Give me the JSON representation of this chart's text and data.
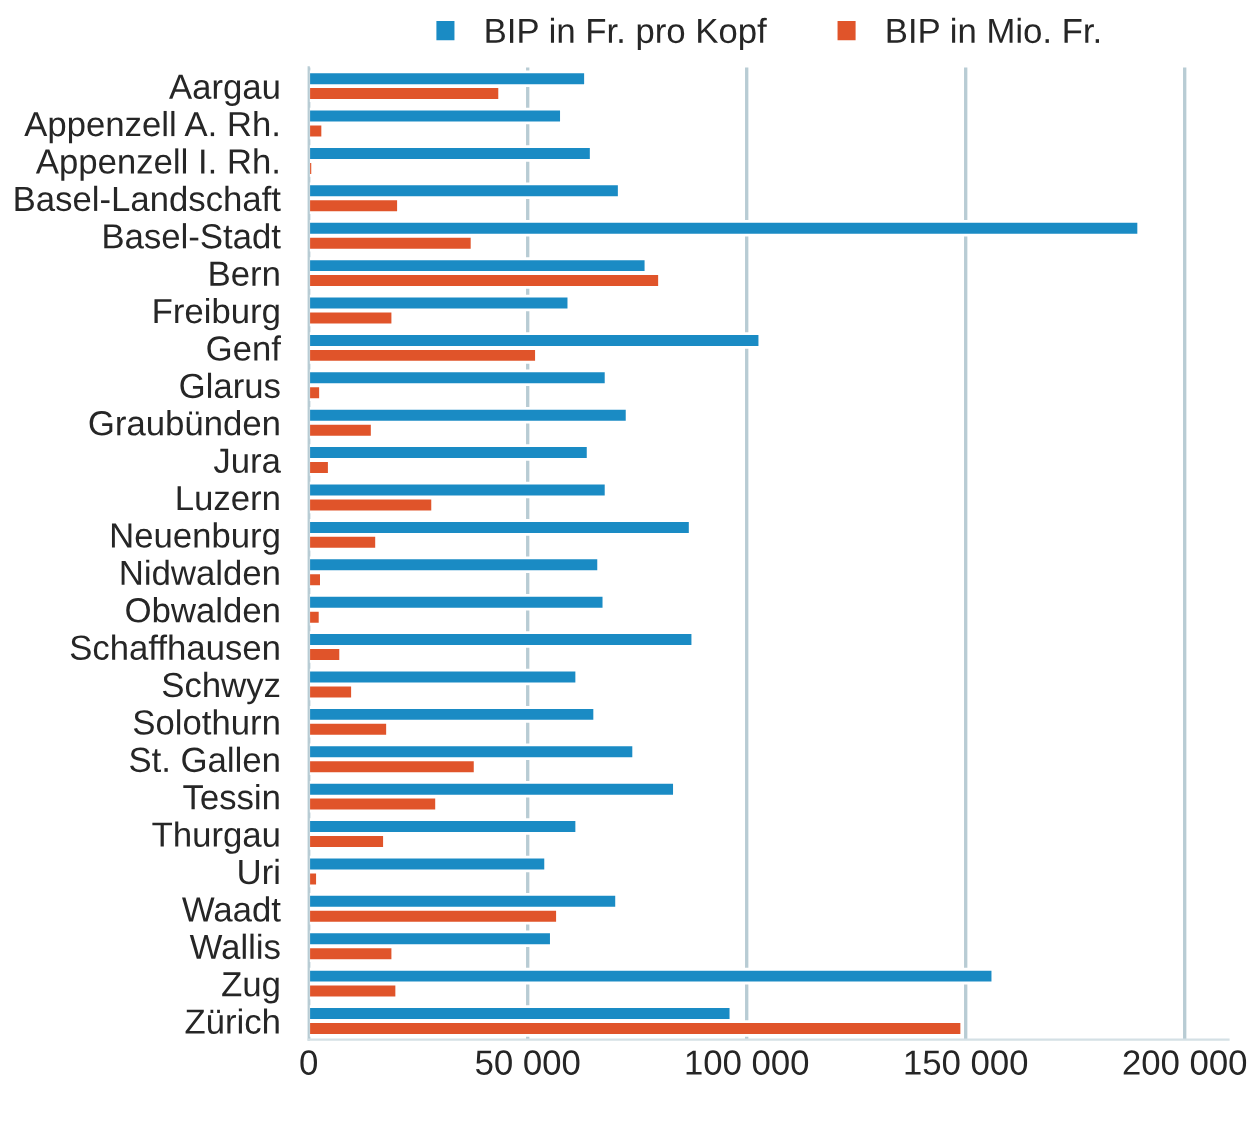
{
  "chart_data": {
    "type": "bar",
    "orientation": "horizontal",
    "categories": [
      "Aargau",
      "Appenzell A. Rh.",
      "Appenzell I. Rh.",
      "Basel-Landschaft",
      "Basel-Stadt",
      "Bern",
      "Freiburg",
      "Genf",
      "Glarus",
      "Graubünden",
      "Jura",
      "Luzern",
      "Neuenburg",
      "Nidwalden",
      "Obwalden",
      "Schaffhausen",
      "Schwyz",
      "Solothurn",
      "St. Gallen",
      "Tessin",
      "Thurgau",
      "Uri",
      "Waadt",
      "Wallis",
      "Zug",
      "Zürich"
    ],
    "series": [
      {
        "name": "BIP in Fr. pro Kopf",
        "color": "#1a8bc4",
        "values": [
          63200,
          57700,
          64500,
          70900,
          189500,
          77000,
          59400,
          103000,
          67900,
          72700,
          63800,
          67900,
          87100,
          66200,
          67400,
          87700,
          61200,
          65300,
          74200,
          83500,
          61200,
          54100,
          70300,
          55400,
          156200,
          96400
        ]
      },
      {
        "name": "BIP in Mio. Fr.",
        "color": "#e0542a",
        "values": [
          43600,
          3200,
          900,
          20500,
          37300,
          80100,
          19200,
          52000,
          2700,
          14500,
          4700,
          28300,
          15500,
          2900,
          2600,
          7300,
          10000,
          18000,
          38000,
          29200,
          17300,
          2000,
          56800,
          19200,
          20100,
          149100
        ]
      }
    ],
    "xlim": [
      0,
      210000
    ],
    "xticks": [
      {
        "value": 0,
        "label": "0"
      },
      {
        "value": 50000,
        "label": "50 000"
      },
      {
        "value": 100000,
        "label": "100 000"
      },
      {
        "value": 150000,
        "label": "150 000"
      },
      {
        "value": 200000,
        "label": "200 000"
      }
    ],
    "grid": "x",
    "legend": "top"
  }
}
